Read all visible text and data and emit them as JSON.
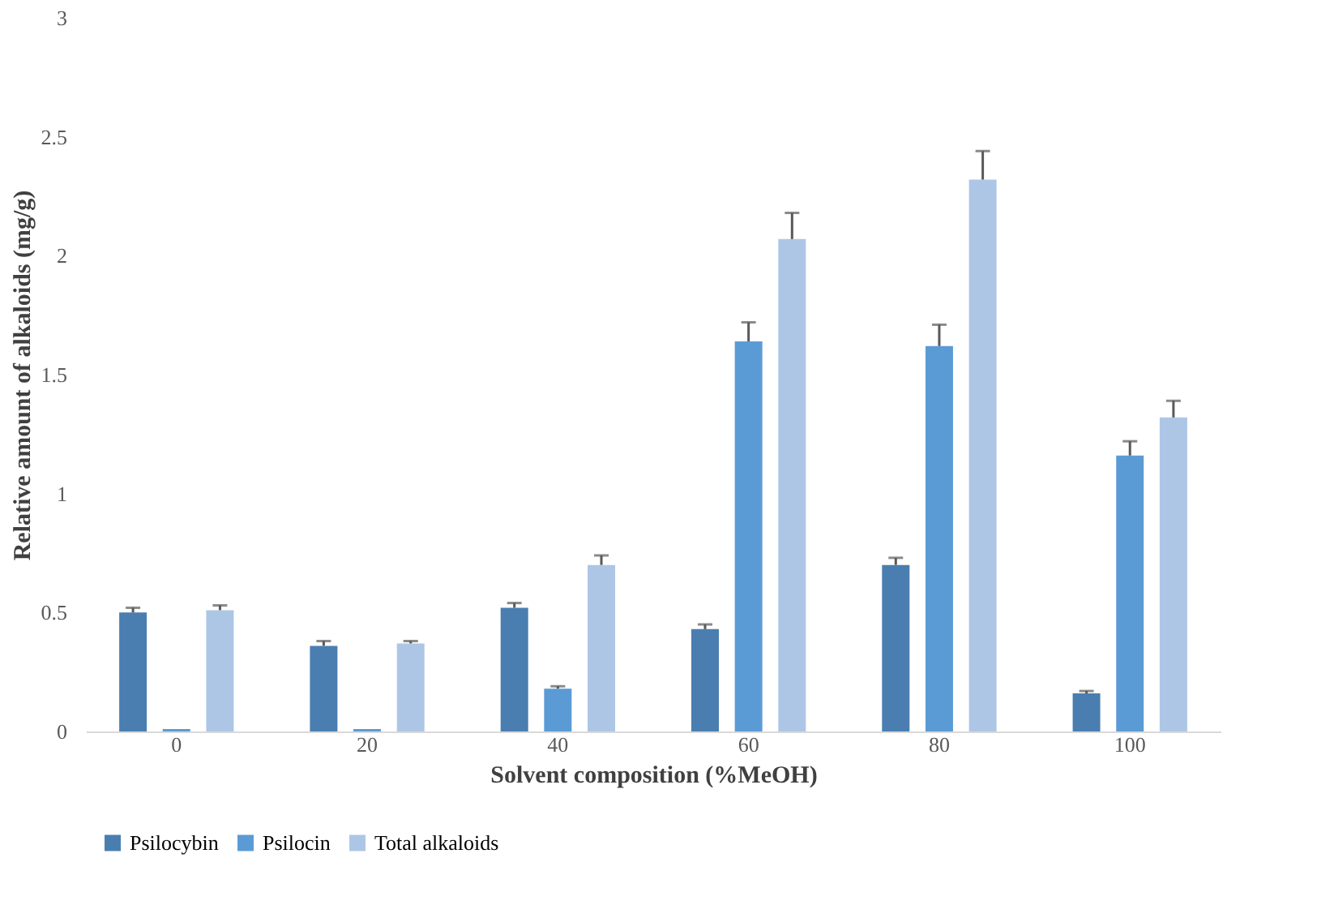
{
  "chart_data": {
    "type": "bar",
    "xlabel": "Solvent composition (%MeOH)",
    "ylabel": "Relative amount of alkaloids (mg/g)",
    "categories": [
      "0",
      "20",
      "40",
      "60",
      "80",
      "100"
    ],
    "series": [
      {
        "name": "Psilocybin",
        "color": "#4a7eb0",
        "values": [
          0.5,
          0.36,
          0.52,
          0.43,
          0.7,
          0.16
        ],
        "errors": [
          [
            0.5,
            0.52
          ],
          [
            0.36,
            0.38
          ],
          [
            0.52,
            0.54
          ],
          [
            0.43,
            0.45
          ],
          [
            0.7,
            0.73
          ],
          [
            0.16,
            0.17
          ]
        ]
      },
      {
        "name": "Psilocin",
        "color": "#5b9bd5",
        "values": [
          0.01,
          0.01,
          0.18,
          1.64,
          1.62,
          1.16
        ],
        "errors": [
          null,
          null,
          [
            0.18,
            0.19
          ],
          [
            1.64,
            1.72
          ],
          [
            1.62,
            1.71
          ],
          [
            1.16,
            1.22
          ]
        ]
      },
      {
        "name": "Total alkaloids",
        "color": "#aec6e6",
        "values": [
          0.51,
          0.37,
          0.7,
          2.07,
          2.32,
          1.32
        ],
        "errors": [
          [
            0.51,
            0.53
          ],
          [
            0.37,
            0.38
          ],
          [
            0.7,
            0.74
          ],
          [
            2.07,
            2.18
          ],
          [
            2.32,
            2.44
          ],
          [
            1.32,
            1.39
          ]
        ]
      }
    ],
    "ylim": [
      0,
      3
    ],
    "yticks": [
      0,
      0.5,
      1,
      1.5,
      2,
      2.5,
      3
    ],
    "grid": false,
    "legend": "bottom"
  }
}
